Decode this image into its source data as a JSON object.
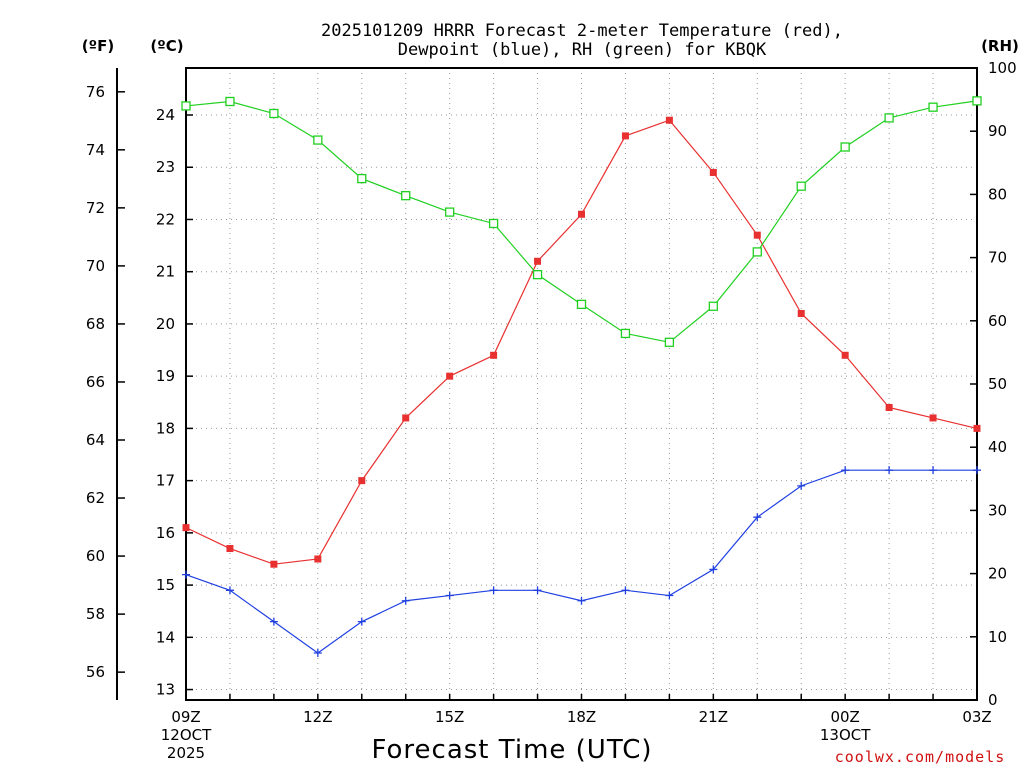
{
  "chart_data": {
    "type": "line",
    "title_line1": "2025101209 HRRR Forecast 2-meter Temperature (red),",
    "title_line2": "Dewpoint (blue), RH (green) for KBQK",
    "xlabel": "Forecast Time (UTC)",
    "units": {
      "fahrenheit": "(ºF)",
      "celsius": "(ºC)",
      "rh": "(RH)"
    },
    "credit": "coolwx.com/models",
    "x": [
      "09Z",
      "10Z",
      "11Z",
      "12Z",
      "13Z",
      "14Z",
      "15Z",
      "16Z",
      "17Z",
      "18Z",
      "19Z",
      "20Z",
      "21Z",
      "22Z",
      "23Z",
      "00Z",
      "01Z",
      "02Z",
      "03Z"
    ],
    "x_ticks": [
      {
        "index": 0,
        "lines": [
          "09Z",
          "12OCT",
          "2025"
        ]
      },
      {
        "index": 3,
        "lines": [
          "12Z"
        ]
      },
      {
        "index": 6,
        "lines": [
          "15Z"
        ]
      },
      {
        "index": 9,
        "lines": [
          "18Z"
        ]
      },
      {
        "index": 12,
        "lines": [
          "21Z"
        ]
      },
      {
        "index": 15,
        "lines": [
          "00Z",
          "13OCT"
        ]
      },
      {
        "index": 18,
        "lines": [
          "03Z"
        ]
      }
    ],
    "celsius_axis": {
      "range": [
        12.8,
        24.9
      ],
      "ticks": [
        13,
        14,
        15,
        16,
        17,
        18,
        19,
        20,
        21,
        22,
        23,
        24
      ]
    },
    "fahrenheit_axis": {
      "ticks": [
        56,
        58,
        60,
        62,
        64,
        66,
        68,
        70,
        72,
        74,
        76
      ]
    },
    "rh_axis": {
      "range": [
        0,
        100
      ],
      "ticks": [
        0,
        10,
        20,
        30,
        40,
        50,
        60,
        70,
        80,
        90,
        100
      ]
    },
    "grid": true,
    "series": [
      {
        "name": "Temperature",
        "color": "#e83030",
        "marker": "filled-square",
        "axis": "celsius",
        "values": [
          16.1,
          15.7,
          15.4,
          15.5,
          17.0,
          18.2,
          19.0,
          19.4,
          21.2,
          22.1,
          23.6,
          23.9,
          22.9,
          21.7,
          20.2,
          19.4,
          18.4,
          18.2,
          18.0
        ]
      },
      {
        "name": "Dewpoint",
        "color": "#2040e0",
        "marker": "plus",
        "axis": "celsius",
        "values": [
          15.2,
          14.9,
          14.3,
          13.7,
          14.3,
          14.7,
          14.8,
          14.9,
          14.9,
          14.7,
          14.9,
          14.8,
          15.3,
          16.3,
          16.9,
          17.2,
          17.2,
          17.2,
          17.2
        ]
      },
      {
        "name": "RH",
        "color": "#20d020",
        "marker": "open-square",
        "axis": "rh",
        "values": [
          94.0,
          94.7,
          92.8,
          88.6,
          82.5,
          79.8,
          77.2,
          75.4,
          67.3,
          62.6,
          58.0,
          56.6,
          62.3,
          70.9,
          81.3,
          87.5,
          92.1,
          93.8,
          94.8
        ]
      }
    ]
  }
}
